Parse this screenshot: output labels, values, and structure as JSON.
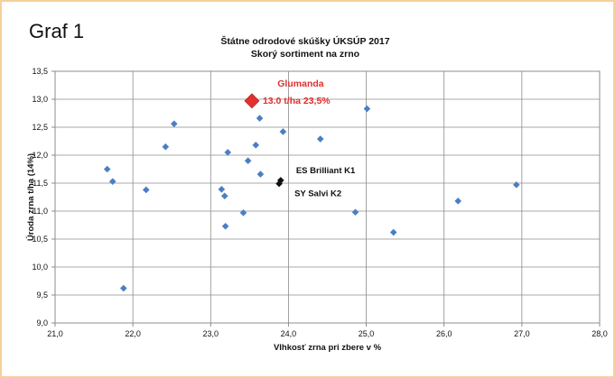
{
  "graf_label": "Graf 1",
  "chart_data": {
    "type": "scatter",
    "title": "Štátne odrodové skúšky ÚKSÚP 2017",
    "subtitle": "Skorý sortiment na zrno",
    "xlabel": "Vlhkosť zrna pri zbere v %",
    "ylabel": "Úroda zrna t/ha (14%)",
    "xlim": [
      21.0,
      28.0
    ],
    "ylim": [
      9.0,
      13.5
    ],
    "x_ticks": [
      "21,0",
      "22,0",
      "23,0",
      "24,0",
      "25,0",
      "26,0",
      "27,0",
      "28,0"
    ],
    "y_ticks": [
      "9,0",
      "9,5",
      "10,0",
      "10,5",
      "11,0",
      "11,5",
      "12,0",
      "12,5",
      "13,0",
      "13,5"
    ],
    "grid": true,
    "colors": {
      "points": "#4a7fc4",
      "highlight": "#e03030",
      "reference": "#111111",
      "frame": "#f5cf9e"
    },
    "points": [
      {
        "x": 21.67,
        "y": 11.75
      },
      {
        "x": 21.74,
        "y": 11.53
      },
      {
        "x": 21.88,
        "y": 9.62
      },
      {
        "x": 22.17,
        "y": 11.38
      },
      {
        "x": 22.42,
        "y": 12.15
      },
      {
        "x": 22.53,
        "y": 12.56
      },
      {
        "x": 23.14,
        "y": 11.39
      },
      {
        "x": 23.18,
        "y": 11.27
      },
      {
        "x": 23.19,
        "y": 10.73
      },
      {
        "x": 23.22,
        "y": 12.05
      },
      {
        "x": 23.42,
        "y": 10.97
      },
      {
        "x": 23.48,
        "y": 11.9
      },
      {
        "x": 23.58,
        "y": 12.18
      },
      {
        "x": 23.63,
        "y": 12.66
      },
      {
        "x": 23.64,
        "y": 11.66
      },
      {
        "x": 23.93,
        "y": 12.42
      },
      {
        "x": 24.41,
        "y": 12.29
      },
      {
        "x": 24.86,
        "y": 10.98
      },
      {
        "x": 25.01,
        "y": 12.83
      },
      {
        "x": 25.35,
        "y": 10.62
      },
      {
        "x": 26.18,
        "y": 11.18
      },
      {
        "x": 26.93,
        "y": 11.47
      }
    ],
    "reference_points": [
      {
        "label": "ES Brilliant K1",
        "x": 23.9,
        "y": 11.55
      },
      {
        "label": "SY Salvi K2",
        "x": 23.88,
        "y": 11.49
      }
    ],
    "highlight": {
      "name": "Glumanda",
      "value_label": "13.0 t/ha   23,5%",
      "x": 23.53,
      "y": 12.97
    }
  }
}
